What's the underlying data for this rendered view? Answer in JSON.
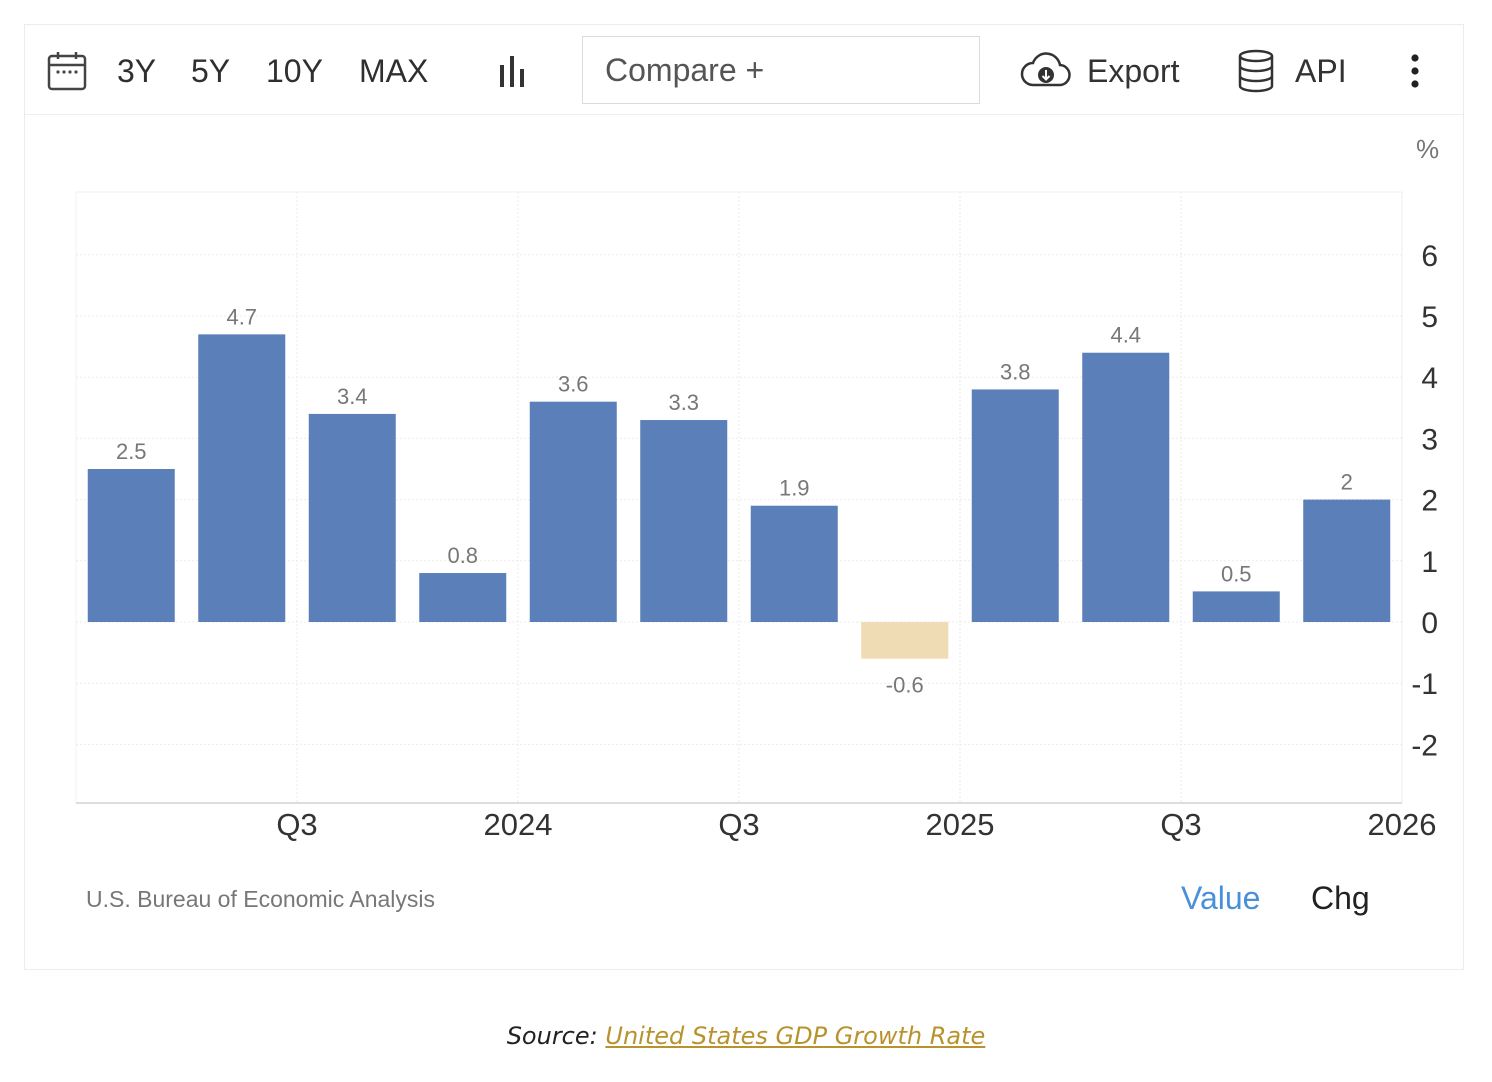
{
  "toolbar": {
    "ranges": [
      "3Y",
      "5Y",
      "10Y",
      "MAX"
    ],
    "compare_label": "Compare +",
    "export_label": "Export",
    "api_label": "API"
  },
  "icons": {
    "calendar": "calendar-icon",
    "chart_type": "bar-chart-icon",
    "export": "cloud-download-icon",
    "api": "database-icon",
    "more": "more-vertical-icon"
  },
  "unit_label": "%",
  "credit": "U.S. Bureau of Economic Analysis",
  "toggle": {
    "value_label": "Value",
    "chg_label": "Chg"
  },
  "source": {
    "prefix": "Source:",
    "link_text": "United States GDP Growth Rate"
  },
  "colors": {
    "positive_bar": "#5b7fb8",
    "negative_bar": "#f0dcb4",
    "active_toggle": "#4a90d9",
    "link": "#b8932c"
  },
  "chart_data": {
    "type": "bar",
    "values": [
      2.5,
      4.7,
      3.4,
      0.8,
      3.6,
      3.3,
      1.9,
      -0.6,
      3.8,
      4.4,
      0.5,
      2
    ],
    "value_labels": [
      "2.5",
      "4.7",
      "3.4",
      "0.8",
      "3.6",
      "3.3",
      "1.9",
      "-0.6",
      "3.8",
      "4.4",
      "0.5",
      "2"
    ],
    "x_tick_labels": [
      {
        "label": "Q3",
        "after_bar": 1
      },
      {
        "label": "2024",
        "after_bar": 3
      },
      {
        "label": "Q3",
        "after_bar": 5
      },
      {
        "label": "2025",
        "after_bar": 7
      },
      {
        "label": "Q3",
        "after_bar": 9
      },
      {
        "label": "2026",
        "after_bar": 11
      }
    ],
    "y_ticks": [
      6,
      5,
      4,
      3,
      2,
      1,
      0,
      -1,
      -2
    ],
    "ylim": [
      -3,
      7
    ],
    "yaxis_side": "right",
    "grid": true,
    "title": "",
    "xlabel": "",
    "ylabel": "%"
  }
}
